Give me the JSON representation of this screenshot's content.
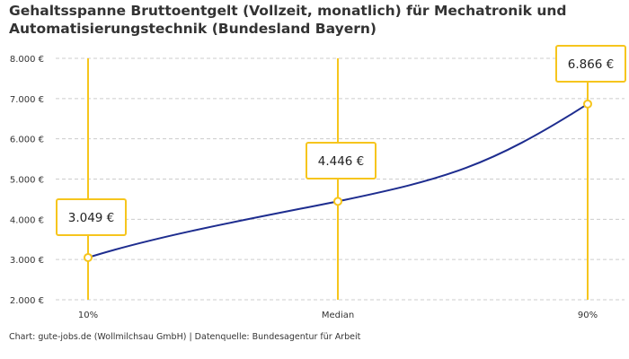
{
  "title": "Gehaltsspanne Bruttoentgelt (Vollzeit, monatlich) für Mechatronik und Automatisierungstechnik (Bundesland Bayern)",
  "footer": "Chart: gute-jobs.de (Wollmilchsau GmbH) | Datenquelle: Bundesagentur für Arbeit",
  "colors": {
    "line": "#1e2d8f",
    "marker": "#f6c51d",
    "grid": "#cccccc"
  },
  "chart_data": {
    "type": "line",
    "categories": [
      "10%",
      "Median",
      "90%"
    ],
    "values": [
      3049,
      4446,
      6866
    ],
    "data_labels": [
      "3.049 €",
      "4.446 €",
      "6.866 €"
    ],
    "ylim": [
      2000,
      8000
    ],
    "yticks": [
      2000,
      3000,
      4000,
      5000,
      6000,
      7000,
      8000
    ],
    "ytick_labels": [
      "2.000 €",
      "3.000 €",
      "4.000 €",
      "5.000 €",
      "6.000 €",
      "7.000 €",
      "8.000 €"
    ],
    "grid": true,
    "xlabel": "",
    "ylabel": ""
  }
}
